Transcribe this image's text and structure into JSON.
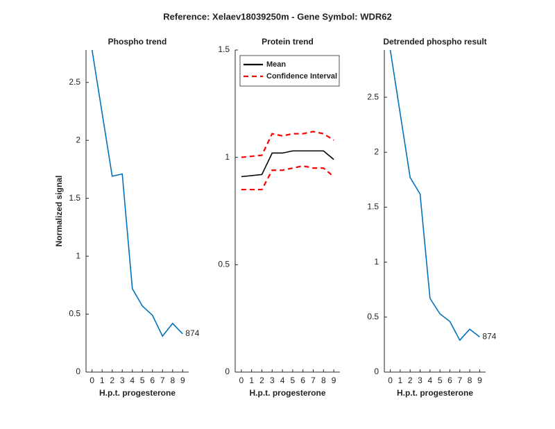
{
  "title": "Reference:  Xelaev18039250m - Gene Symbol:  WDR62",
  "chart_data": [
    {
      "type": "line",
      "title": "Phospho trend",
      "xlabel": "H.p.t. progesterone",
      "ylabel": "Normalized signal",
      "x": [
        0,
        2,
        3,
        4,
        5,
        6,
        7,
        8,
        9
      ],
      "series": [
        {
          "color": "#0072bd",
          "style": "solid",
          "values": [
            2.78,
            1.69,
            1.71,
            0.72,
            0.57,
            0.49,
            0.31,
            0.42,
            0.33
          ]
        }
      ],
      "annotation": "874",
      "xlim": [
        -0.6,
        9.6
      ],
      "ylim": [
        0,
        2.78
      ],
      "xticks": [
        0,
        1,
        2,
        3,
        4,
        5,
        6,
        7,
        8,
        9
      ],
      "yticks": [
        0,
        0.5,
        1,
        1.5,
        2,
        2.5
      ]
    },
    {
      "type": "line",
      "title": "Protein trend",
      "xlabel": "H.p.t. progesterone",
      "x": [
        0,
        2,
        3,
        4,
        5,
        6,
        7,
        8,
        9
      ],
      "series": [
        {
          "name": "Mean",
          "color": "#000000",
          "style": "solid",
          "values": [
            0.91,
            0.92,
            1.02,
            1.02,
            1.03,
            1.03,
            1.03,
            1.03,
            0.99
          ]
        },
        {
          "name": "Confidence Interval",
          "color": "#ff0000",
          "style": "dashed",
          "values": [
            1.0,
            1.01,
            1.11,
            1.1,
            1.11,
            1.11,
            1.12,
            1.11,
            1.08
          ]
        },
        {
          "color": "#ff0000",
          "style": "dashed",
          "values": [
            0.85,
            0.85,
            0.94,
            0.94,
            0.95,
            0.96,
            0.95,
            0.95,
            0.91
          ]
        }
      ],
      "legend": "northwest",
      "xlim": [
        -0.6,
        9.6
      ],
      "ylim": [
        0,
        1.5
      ],
      "xticks": [
        0,
        1,
        2,
        3,
        4,
        5,
        6,
        7,
        8,
        9
      ],
      "yticks": [
        0,
        0.5,
        1,
        1.5
      ]
    },
    {
      "type": "line",
      "title": "Detrended phospho result",
      "xlabel": "H.p.t. progesterone",
      "x": [
        0,
        2,
        3,
        4,
        5,
        6,
        7,
        8,
        9
      ],
      "series": [
        {
          "color": "#0072bd",
          "style": "solid",
          "values": [
            2.93,
            1.77,
            1.62,
            0.67,
            0.53,
            0.46,
            0.29,
            0.39,
            0.32
          ]
        }
      ],
      "annotation": "874",
      "xlim": [
        -0.6,
        9.6
      ],
      "ylim": [
        0,
        2.93
      ],
      "xticks": [
        0,
        1,
        2,
        3,
        4,
        5,
        6,
        7,
        8,
        9
      ],
      "yticks": [
        0,
        0.5,
        1,
        1.5,
        2,
        2.5
      ]
    }
  ]
}
